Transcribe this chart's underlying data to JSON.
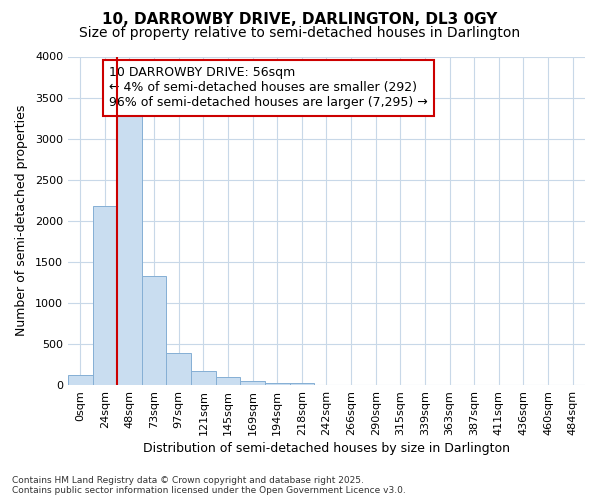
{
  "title": "10, DARROWBY DRIVE, DARLINGTON, DL3 0GY",
  "subtitle": "Size of property relative to semi-detached houses in Darlington",
  "xlabel": "Distribution of semi-detached houses by size in Darlington",
  "ylabel": "Number of semi-detached properties",
  "footer_line1": "Contains HM Land Registry data © Crown copyright and database right 2025.",
  "footer_line2": "Contains public sector information licensed under the Open Government Licence v3.0.",
  "annotation_title": "10 DARROWBY DRIVE: 56sqm",
  "annotation_line1": "← 4% of semi-detached houses are smaller (292)",
  "annotation_line2": "96% of semi-detached houses are larger (7,295) →",
  "bar_labels": [
    "0sqm",
    "24sqm",
    "48sqm",
    "73sqm",
    "97sqm",
    "121sqm",
    "145sqm",
    "169sqm",
    "194sqm",
    "218sqm",
    "242sqm",
    "266sqm",
    "290sqm",
    "315sqm",
    "339sqm",
    "363sqm",
    "387sqm",
    "411sqm",
    "436sqm",
    "460sqm",
    "484sqm"
  ],
  "bar_values": [
    120,
    2175,
    3280,
    1330,
    390,
    170,
    100,
    55,
    30,
    20,
    0,
    0,
    0,
    0,
    0,
    0,
    0,
    0,
    0,
    0,
    0
  ],
  "bar_color": "#c9ddf0",
  "bar_edge_color": "#85afd4",
  "ylim": [
    0,
    4000
  ],
  "yticks": [
    0,
    500,
    1000,
    1500,
    2000,
    2500,
    3000,
    3500,
    4000
  ],
  "background_color": "#ffffff",
  "plot_bg_color": "#ffffff",
  "annotation_box_facecolor": "#ffffff",
  "annotation_box_edgecolor": "#cc0000",
  "red_line_color": "#cc0000",
  "grid_color": "#c8d8e8",
  "title_fontsize": 11,
  "subtitle_fontsize": 10,
  "axis_label_fontsize": 9,
  "tick_fontsize": 8,
  "annotation_fontsize": 9,
  "red_line_bar_index": 2
}
